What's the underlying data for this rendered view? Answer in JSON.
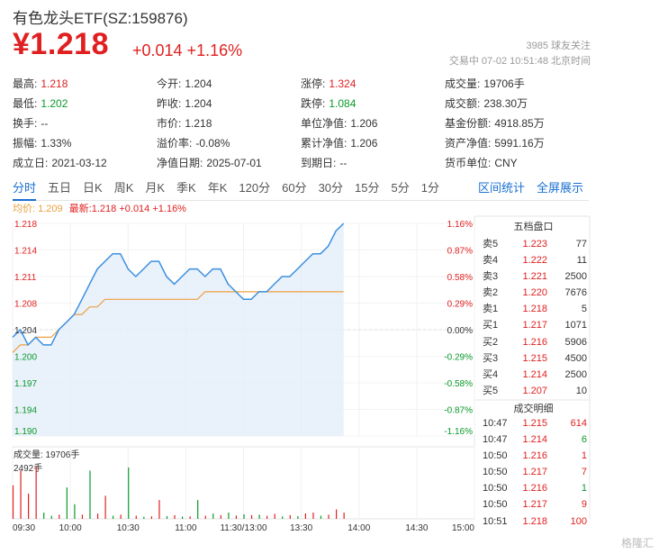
{
  "header": {
    "title": "有色龙头ETF(SZ:159876)",
    "price": "¥1.218",
    "change": "+0.014 +1.16%",
    "followers": "3985 球友关注",
    "trade_time": "交易中 07-02 10:51:48 北京时间"
  },
  "stats": [
    [
      {
        "label": "最高:",
        "value": "1.218",
        "color": "red"
      },
      {
        "label": "今开:",
        "value": "1.204",
        "color": ""
      },
      {
        "label": "涨停:",
        "value": "1.324",
        "color": "red"
      },
      {
        "label": "成交量:",
        "value": "19706手",
        "color": ""
      }
    ],
    [
      {
        "label": "最低:",
        "value": "1.202",
        "color": "green"
      },
      {
        "label": "昨收:",
        "value": "1.204",
        "color": ""
      },
      {
        "label": "跌停:",
        "value": "1.084",
        "color": "green"
      },
      {
        "label": "成交额:",
        "value": "238.30万",
        "color": ""
      }
    ],
    [
      {
        "label": "换手:",
        "value": "--",
        "color": ""
      },
      {
        "label": "市价:",
        "value": "1.218",
        "color": ""
      },
      {
        "label": "单位净值:",
        "value": "1.206",
        "color": ""
      },
      {
        "label": "基金份额:",
        "value": "4918.85万",
        "color": ""
      }
    ],
    [
      {
        "label": "振幅:",
        "value": "1.33%",
        "color": ""
      },
      {
        "label": "溢价率:",
        "value": "-0.08%",
        "color": ""
      },
      {
        "label": "累计净值:",
        "value": "1.206",
        "color": ""
      },
      {
        "label": "资产净值:",
        "value": "5991.16万",
        "color": ""
      }
    ],
    [
      {
        "label": "成立日:",
        "value": "2021-03-12",
        "color": ""
      },
      {
        "label": "净值日期:",
        "value": "2025-07-01",
        "color": ""
      },
      {
        "label": "到期日:",
        "value": "--",
        "color": ""
      },
      {
        "label": "货币单位:",
        "value": "CNY",
        "color": ""
      }
    ]
  ],
  "tabs": [
    "分时",
    "五日",
    "日K",
    "周K",
    "月K",
    "季K",
    "年K",
    "120分",
    "60分",
    "30分",
    "15分",
    "5分",
    "1分"
  ],
  "active_tab": 0,
  "tab_links": [
    "区间统计",
    "全屏展示"
  ],
  "avg_bar": {
    "avg": "均价: 1.209",
    "last": "最新:1.218 +0.014 +1.16%"
  },
  "chart_data": {
    "type": "line",
    "y_ticks_left": [
      "1.218",
      "1.214",
      "1.211",
      "1.208",
      "1.204",
      "1.200",
      "1.197",
      "1.194",
      "1.190"
    ],
    "y_ticks_right": [
      "1.16%",
      "0.87%",
      "0.58%",
      "0.29%",
      "0.00%",
      "-0.29%",
      "-0.58%",
      "-0.87%",
      "-1.16%"
    ],
    "x_ticks": [
      "09:30",
      "10:00",
      "10:30",
      "11:00",
      "11:30/13:00",
      "13:30",
      "14:00",
      "14:30",
      "15:00"
    ],
    "prev_close": 1.204,
    "ylim": [
      1.19,
      1.218
    ],
    "price_series": [
      1.203,
      1.204,
      1.202,
      1.203,
      1.202,
      1.202,
      1.204,
      1.205,
      1.206,
      1.208,
      1.21,
      1.212,
      1.213,
      1.214,
      1.214,
      1.212,
      1.211,
      1.212,
      1.213,
      1.213,
      1.211,
      1.21,
      1.211,
      1.212,
      1.212,
      1.211,
      1.212,
      1.212,
      1.21,
      1.209,
      1.208,
      1.208,
      1.209,
      1.209,
      1.21,
      1.211,
      1.211,
      1.212,
      1.213,
      1.214,
      1.214,
      1.215,
      1.217,
      1.218
    ],
    "avg_series": [
      1.201,
      1.202,
      1.202,
      1.203,
      1.203,
      1.203,
      1.204,
      1.205,
      1.206,
      1.206,
      1.207,
      1.207,
      1.208,
      1.208,
      1.208,
      1.208,
      1.208,
      1.208,
      1.208,
      1.208,
      1.208,
      1.208,
      1.208,
      1.208,
      1.208,
      1.209,
      1.209,
      1.209,
      1.209,
      1.209,
      1.209,
      1.209,
      1.209,
      1.209,
      1.209,
      1.209,
      1.209,
      1.209,
      1.209,
      1.209,
      1.209,
      1.209,
      1.209,
      1.209
    ],
    "volume_label": "成交量: 19706手",
    "volume_max_label": "2492手",
    "volume_max": 2492,
    "volume_series": [
      {
        "v": 1600,
        "c": "red"
      },
      {
        "v": 2300,
        "c": "red"
      },
      {
        "v": 1200,
        "c": "red"
      },
      {
        "v": 2492,
        "c": "red"
      },
      {
        "v": 300,
        "c": "green"
      },
      {
        "v": 150,
        "c": "green"
      },
      {
        "v": 200,
        "c": "red"
      },
      {
        "v": 1500,
        "c": "green"
      },
      {
        "v": 700,
        "c": "green"
      },
      {
        "v": 200,
        "c": "red"
      },
      {
        "v": 2300,
        "c": "green"
      },
      {
        "v": 250,
        "c": "red"
      },
      {
        "v": 1100,
        "c": "red"
      },
      {
        "v": 150,
        "c": "green"
      },
      {
        "v": 200,
        "c": "red"
      },
      {
        "v": 2450,
        "c": "green"
      },
      {
        "v": 150,
        "c": "red"
      },
      {
        "v": 100,
        "c": "green"
      },
      {
        "v": 120,
        "c": "red"
      },
      {
        "v": 900,
        "c": "red"
      },
      {
        "v": 130,
        "c": "green"
      },
      {
        "v": 180,
        "c": "red"
      },
      {
        "v": 110,
        "c": "green"
      },
      {
        "v": 120,
        "c": "red"
      },
      {
        "v": 900,
        "c": "green"
      },
      {
        "v": 150,
        "c": "red"
      },
      {
        "v": 250,
        "c": "green"
      },
      {
        "v": 180,
        "c": "red"
      },
      {
        "v": 300,
        "c": "green"
      },
      {
        "v": 160,
        "c": "red"
      },
      {
        "v": 220,
        "c": "green"
      },
      {
        "v": 180,
        "c": "red"
      },
      {
        "v": 200,
        "c": "green"
      },
      {
        "v": 150,
        "c": "red"
      },
      {
        "v": 240,
        "c": "red"
      },
      {
        "v": 120,
        "c": "green"
      },
      {
        "v": 180,
        "c": "red"
      },
      {
        "v": 130,
        "c": "green"
      },
      {
        "v": 260,
        "c": "red"
      },
      {
        "v": 300,
        "c": "red"
      },
      {
        "v": 150,
        "c": "green"
      },
      {
        "v": 200,
        "c": "red"
      },
      {
        "v": 450,
        "c": "red"
      },
      {
        "v": 300,
        "c": "red"
      }
    ]
  },
  "order_book": {
    "title": "五档盘口",
    "rows": [
      {
        "label": "卖5",
        "price": "1.223",
        "qty": "77",
        "color": "red"
      },
      {
        "label": "卖4",
        "price": "1.222",
        "qty": "11",
        "color": "red"
      },
      {
        "label": "卖3",
        "price": "1.221",
        "qty": "2500",
        "color": "red"
      },
      {
        "label": "卖2",
        "price": "1.220",
        "qty": "7676",
        "color": "red"
      },
      {
        "label": "卖1",
        "price": "1.218",
        "qty": "5",
        "color": "red"
      },
      {
        "label": "买1",
        "price": "1.217",
        "qty": "1071",
        "color": "red"
      },
      {
        "label": "买2",
        "price": "1.216",
        "qty": "5906",
        "color": "red"
      },
      {
        "label": "买3",
        "price": "1.215",
        "qty": "4500",
        "color": "red"
      },
      {
        "label": "买4",
        "price": "1.214",
        "qty": "2500",
        "color": "red"
      },
      {
        "label": "买5",
        "price": "1.207",
        "qty": "10",
        "color": "red"
      }
    ]
  },
  "trade_detail": {
    "title": "成交明细",
    "rows": [
      {
        "time": "10:47",
        "price": "1.215",
        "qty": "614",
        "color": "red"
      },
      {
        "time": "10:47",
        "price": "1.214",
        "qty": "6",
        "color": "green"
      },
      {
        "time": "10:50",
        "price": "1.216",
        "qty": "1",
        "color": "red"
      },
      {
        "time": "10:50",
        "price": "1.217",
        "qty": "7",
        "color": "red"
      },
      {
        "time": "10:50",
        "price": "1.216",
        "qty": "1",
        "color": "green"
      },
      {
        "time": "10:50",
        "price": "1.217",
        "qty": "9",
        "color": "red"
      },
      {
        "time": "10:51",
        "price": "1.218",
        "qty": "100",
        "color": "red"
      }
    ]
  },
  "colors": {
    "up": "#e02020",
    "down": "#0a9a2a",
    "price_line": "#3b8fe0",
    "avg_line": "#f0a040",
    "fill": "#e3eefa"
  },
  "watermark": "格隆汇"
}
